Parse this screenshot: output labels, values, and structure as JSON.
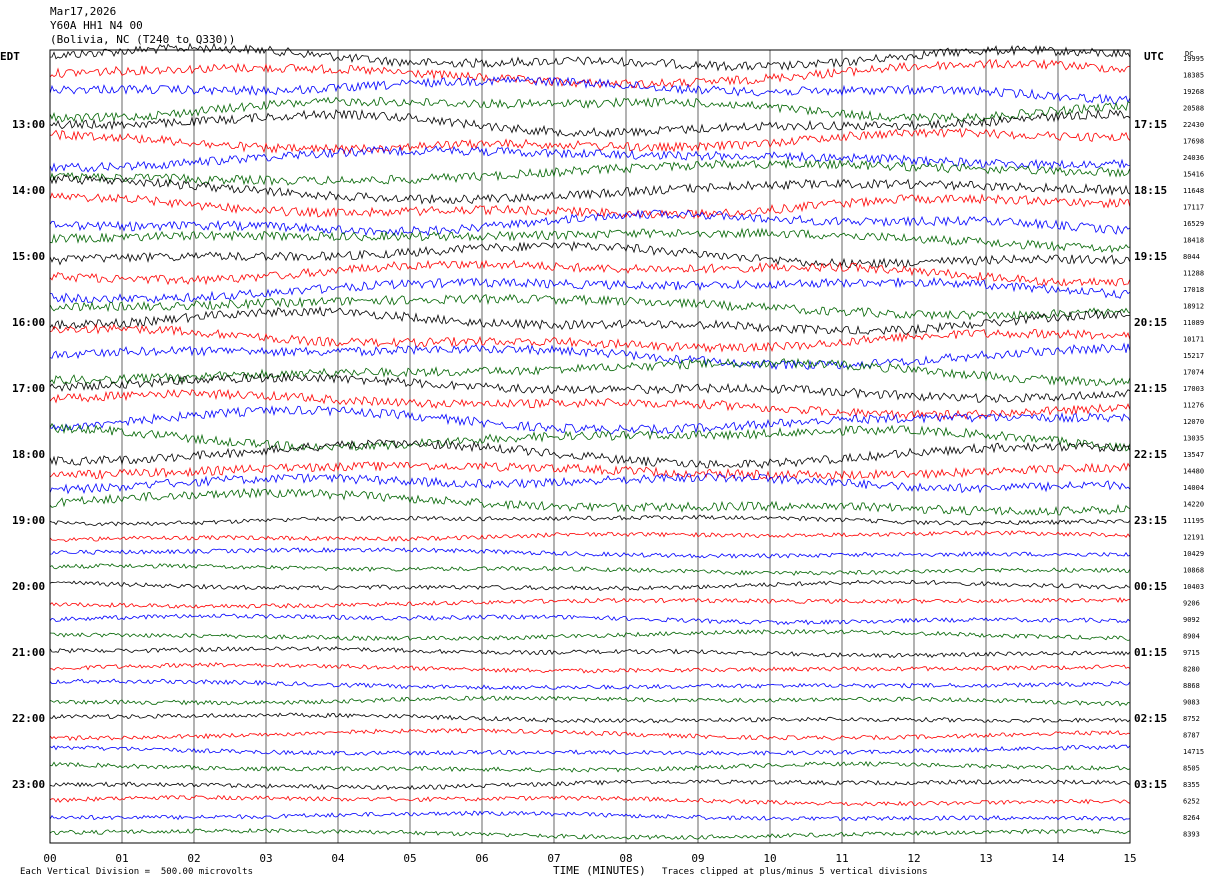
{
  "header": {
    "date": "Mar17,2026",
    "station": "Y60A HH1 N4 00",
    "location": "(Bolivia, NC (T240 to Q330))"
  },
  "left_tz": "EDT",
  "right_tz": "UTC",
  "dc_label": "DC",
  "footer": {
    "scale_note": "Each Vertical Division =  500.00 microvolts",
    "xlabel": "TIME (MINUTES)",
    "clip_note": "Traces clipped at plus/minus 5 vertical divisions"
  },
  "colors": {
    "cycle": [
      "#000000",
      "#ff0000",
      "#0000ff",
      "#006400"
    ]
  },
  "chart_data": {
    "type": "line",
    "x_ticks": [
      "00",
      "01",
      "02",
      "03",
      "04",
      "05",
      "06",
      "07",
      "08",
      "09",
      "10",
      "11",
      "12",
      "13",
      "14",
      "15"
    ],
    "xlim": [
      0,
      15
    ],
    "left_hour_labels": [
      "13:00",
      "14:00",
      "15:00",
      "16:00",
      "17:00",
      "18:00",
      "19:00",
      "20:00",
      "21:00",
      "22:00",
      "23:00"
    ],
    "right_hour_labels": [
      "17:15",
      "18:15",
      "19:15",
      "20:15",
      "21:15",
      "22:15",
      "23:15",
      "00:15",
      "01:15",
      "02:15",
      "03:15"
    ],
    "dc_offsets": [
      "19995",
      "18385",
      "19268",
      "20588",
      "22430",
      "17698",
      "24036",
      "15416",
      "11648",
      "17117",
      "16529",
      "18418",
      "8044",
      "11288",
      "17018",
      "18912",
      "11089",
      "10171",
      "15217",
      "17074",
      "17003",
      "11276",
      "12070",
      "13035",
      "13547",
      "14480",
      "14004",
      "14220",
      "11195",
      "12191",
      "10429",
      "10868",
      "10403",
      "9206",
      "9092",
      "8904",
      "9715",
      "8280",
      "8868",
      "9083",
      "8752",
      "8787",
      "14715",
      "8505",
      "8355",
      "6252",
      "8264",
      "8393"
    ],
    "trace_count": 48,
    "traces_per_hour": 4
  }
}
